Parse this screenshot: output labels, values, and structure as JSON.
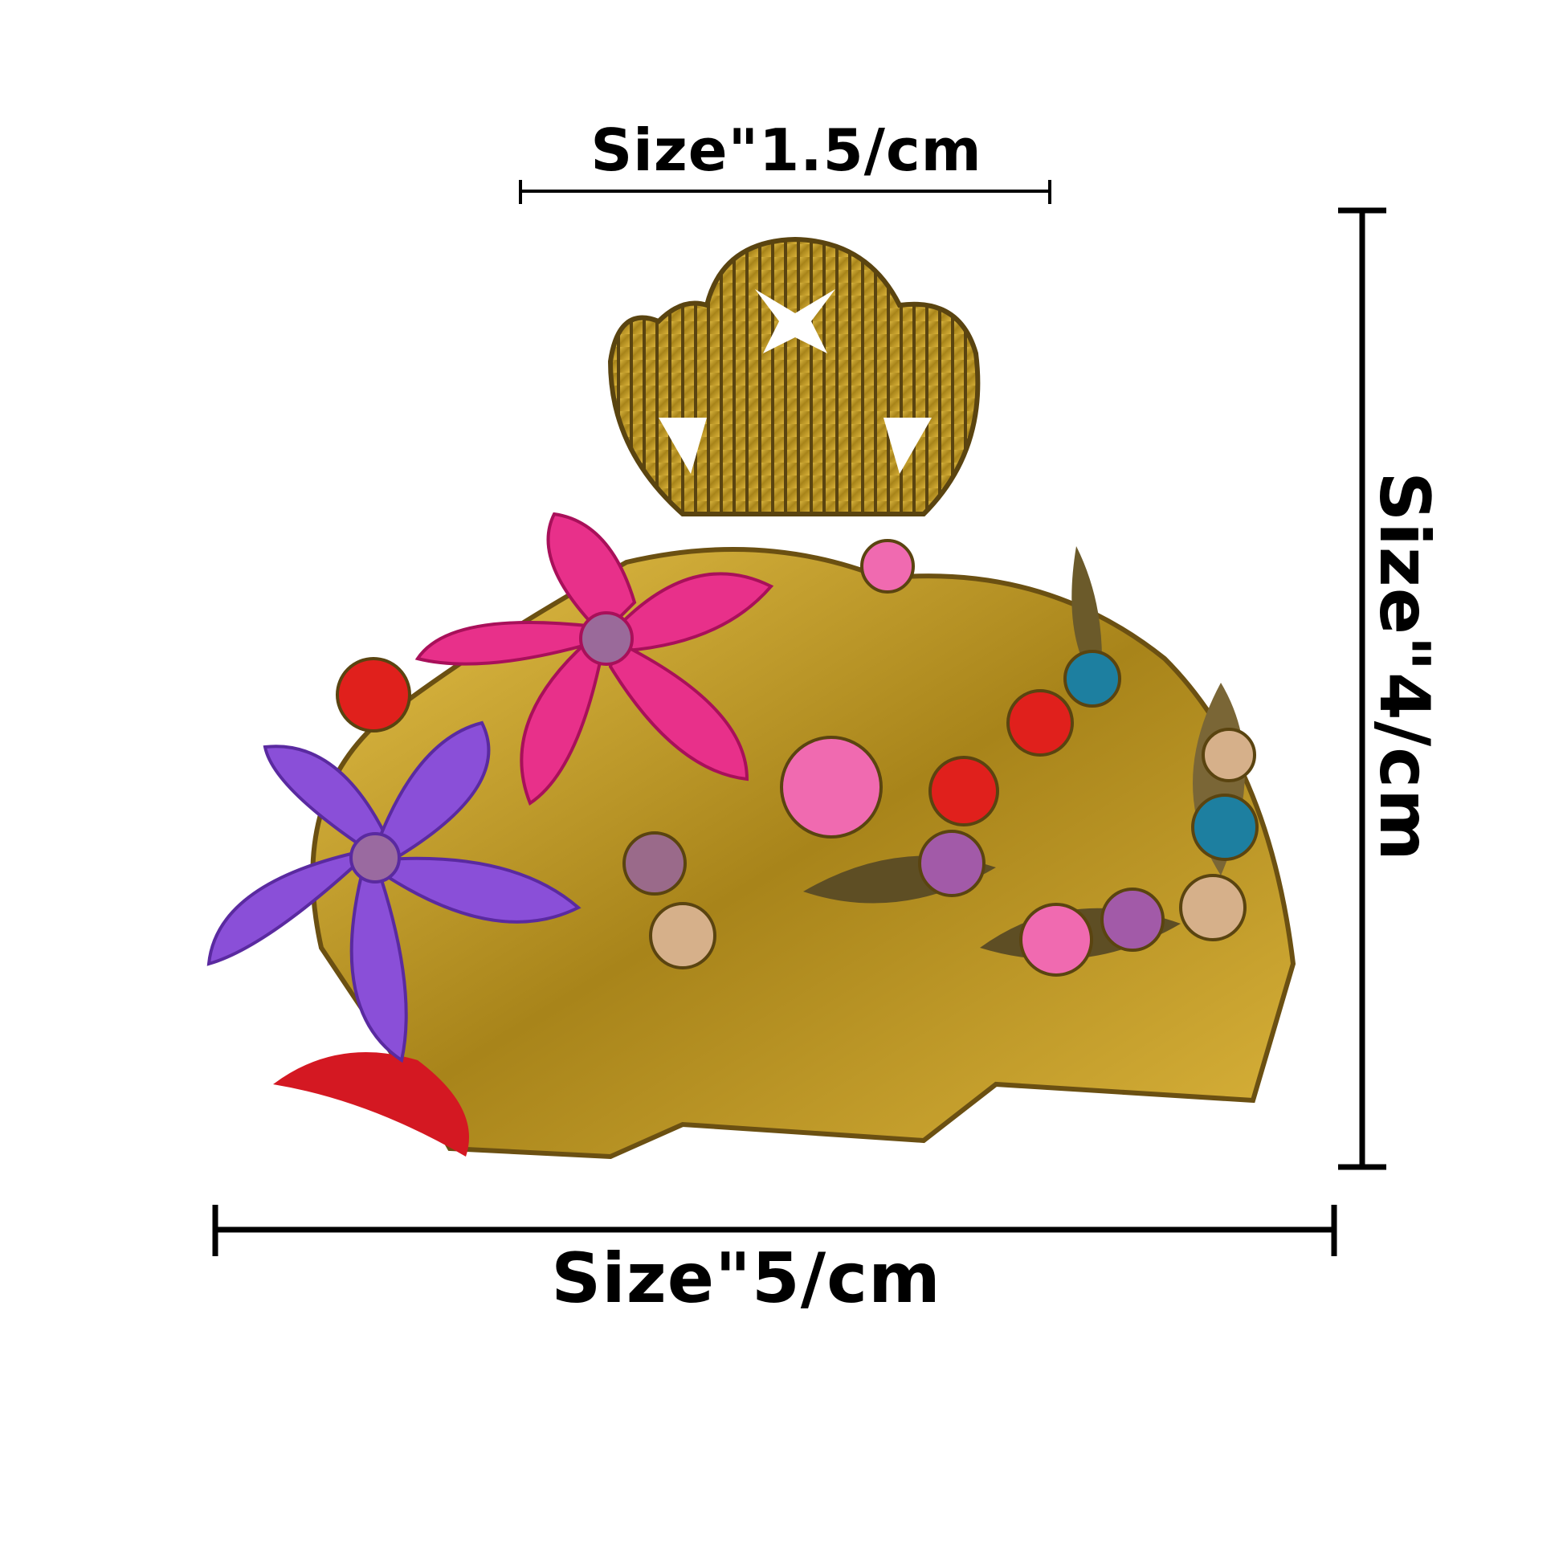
{
  "dimensions": {
    "width_top": "Size\"1.5/cm",
    "width_bottom": "Size\"5/cm",
    "height": "Size\"4/cm"
  },
  "colors": {
    "gold": "#b8961e",
    "pink_flower": "#e8308a",
    "purple_flower": "#8a4fd8",
    "red_gem": "#e0201c",
    "blue_gem": "#1d7fa0",
    "pink_gem": "#f06ab0",
    "line": "#000000"
  }
}
